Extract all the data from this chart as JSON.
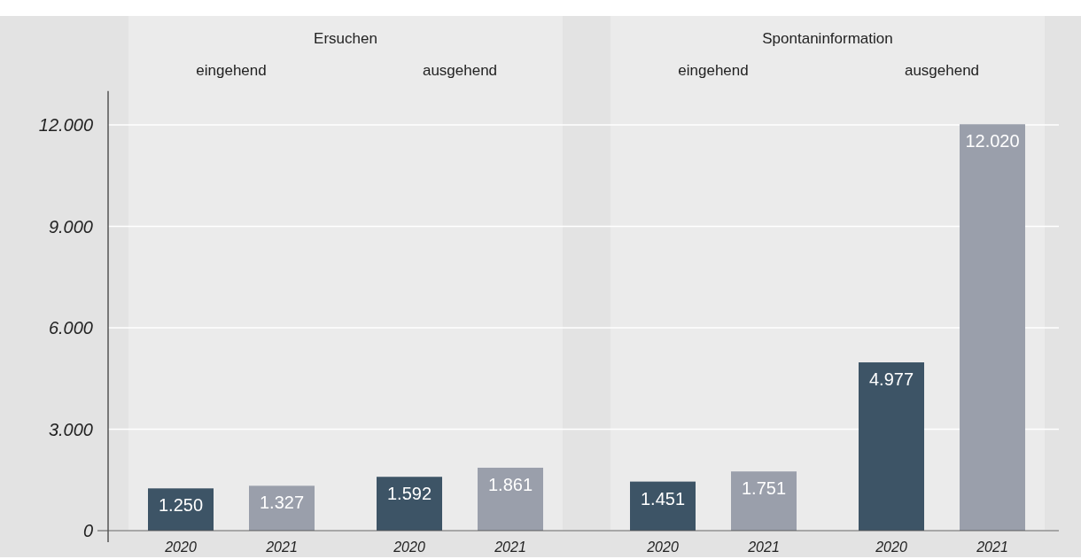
{
  "chart_data": {
    "type": "bar",
    "categories": [
      "2020",
      "2021",
      "2020",
      "2021",
      "2020",
      "2021",
      "2020",
      "2021"
    ],
    "values": [
      1250,
      1327,
      1592,
      1861,
      1451,
      1751,
      4977,
      12020
    ],
    "colors": [
      "#3d5466",
      "#9a9fab",
      "#3d5466",
      "#9a9fab",
      "#3d5466",
      "#9a9fab",
      "#3d5466",
      "#9a9fab"
    ],
    "ylim": [
      0,
      13000
    ],
    "yticks": [
      {
        "value": 0,
        "label": "0"
      },
      {
        "value": 3000,
        "label": "3.000"
      },
      {
        "value": 6000,
        "label": "6.000"
      },
      {
        "value": 9000,
        "label": "9.000"
      },
      {
        "value": 12000,
        "label": "12.000"
      }
    ],
    "grid": "y",
    "value_labels": [
      "1.250",
      "1.327",
      "1.592",
      "1.861",
      "1.451",
      "1.751",
      "4.977",
      "12.020"
    ],
    "annotations": [
      "Ersuchen",
      "Spontaninformation",
      "eingehend",
      "ausgehend",
      "eingehend",
      "ausgehend"
    ]
  }
}
